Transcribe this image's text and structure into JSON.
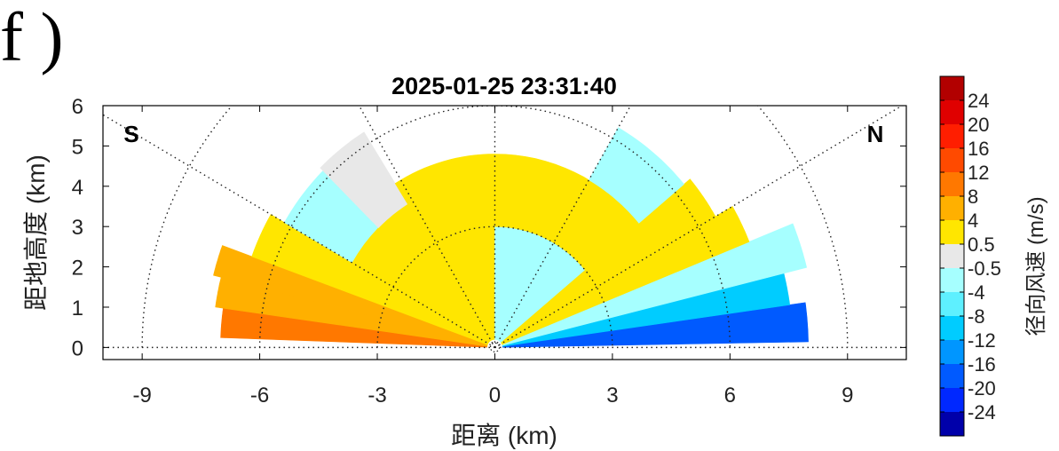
{
  "panel_label": "f )",
  "chart_data": {
    "type": "heatmap",
    "projection": "RHI polar scan (range vs height)",
    "title": "2025-01-25 23:31:40",
    "xlabel": "距离 (km)",
    "ylabel": "距地高度 (km)",
    "xlim": [
      -10,
      10.5
    ],
    "ylim": [
      -0.3,
      6
    ],
    "xticks": [
      -9,
      -6,
      -3,
      0,
      3,
      6,
      9
    ],
    "yticks": [
      0,
      1,
      2,
      3,
      4,
      5,
      6
    ],
    "grid": "dotted polar (range rings 3, 6, 9 km; elevation spokes every 30°)",
    "direction_left": "S",
    "direction_right": "N",
    "colorbar": {
      "label": "径向风速 (m/s)",
      "tick_labels": [
        "24",
        "20",
        "16",
        "12",
        "8",
        "4",
        "0.5",
        "-0.5",
        "-4",
        "-8",
        "-12",
        "-16",
        "-20",
        "-24"
      ],
      "bins": [
        {
          "from": 24,
          "to": 28,
          "color": "#b20000"
        },
        {
          "from": 20,
          "to": 24,
          "color": "#e00000"
        },
        {
          "from": 16,
          "to": 20,
          "color": "#ff1e00"
        },
        {
          "from": 12,
          "to": 16,
          "color": "#ff4a00"
        },
        {
          "from": 8,
          "to": 12,
          "color": "#ff7800"
        },
        {
          "from": 4,
          "to": 8,
          "color": "#ffb000"
        },
        {
          "from": 0.5,
          "to": 4,
          "color": "#ffe600"
        },
        {
          "from": -0.5,
          "to": 0.5,
          "color": "#e8e8e8"
        },
        {
          "from": -4,
          "to": -0.5,
          "color": "#a6ffff"
        },
        {
          "from": -8,
          "to": -4,
          "color": "#5ef0ff"
        },
        {
          "from": -12,
          "to": -8,
          "color": "#00ccff"
        },
        {
          "from": -16,
          "to": -12,
          "color": "#0096ff"
        },
        {
          "from": -20,
          "to": -16,
          "color": "#005aff"
        },
        {
          "from": -24,
          "to": -20,
          "color": "#0028ff"
        },
        {
          "from": -28,
          "to": -24,
          "color": "#0000aa"
        }
      ]
    },
    "regions": [
      {
        "side": "S",
        "elev_deg": [
          2,
          8
        ],
        "range_km": [
          0.2,
          7
        ],
        "velocity": 10
      },
      {
        "side": "S",
        "elev_deg": [
          8,
          14
        ],
        "range_km": [
          0.2,
          7.2
        ],
        "velocity": 7
      },
      {
        "side": "S",
        "elev_deg": [
          14,
          20
        ],
        "range_km": [
          0.2,
          7.4
        ],
        "velocity": 4
      },
      {
        "side": "S",
        "elev_deg": [
          20,
          30
        ],
        "range_km": [
          0.2,
          6.6
        ],
        "velocity": 2
      },
      {
        "side": "S",
        "elev_deg": [
          30,
          45
        ],
        "range_km": [
          4.2,
          6.2
        ],
        "velocity": -2
      },
      {
        "side": "S",
        "elev_deg": [
          30,
          90
        ],
        "range_km": [
          0.2,
          4.2
        ],
        "velocity": 2
      },
      {
        "side": "S",
        "elev_deg": [
          45,
          58
        ],
        "range_km": [
          4.2,
          6.3
        ],
        "velocity": 0
      },
      {
        "side": "S",
        "elev_deg": [
          58,
          90
        ],
        "range_km": [
          4.2,
          4.8
        ],
        "velocity": 2
      },
      {
        "side": "N",
        "elev_deg": [
          1,
          8
        ],
        "range_km": [
          0.2,
          8
        ],
        "velocity": -18
      },
      {
        "side": "N",
        "elev_deg": [
          8,
          14
        ],
        "range_km": [
          0.2,
          7.6
        ],
        "velocity": -10
      },
      {
        "side": "N",
        "elev_deg": [
          14,
          22
        ],
        "range_km": [
          0.2,
          8.2
        ],
        "velocity": -4
      },
      {
        "side": "N",
        "elev_deg": [
          22,
          30
        ],
        "range_km": [
          0.2,
          7
        ],
        "velocity": 2
      },
      {
        "side": "N",
        "elev_deg": [
          30,
          40
        ],
        "range_km": [
          0.2,
          6.5
        ],
        "velocity": 3
      },
      {
        "side": "N",
        "elev_deg": [
          40,
          90
        ],
        "range_km": [
          0.2,
          3
        ],
        "velocity": -2
      },
      {
        "side": "N",
        "elev_deg": [
          40,
          90
        ],
        "range_km": [
          3,
          4.8
        ],
        "velocity": 2
      },
      {
        "side": "N",
        "elev_deg": [
          40,
          60
        ],
        "range_km": [
          4.8,
          6.3
        ],
        "velocity": -2
      }
    ]
  }
}
